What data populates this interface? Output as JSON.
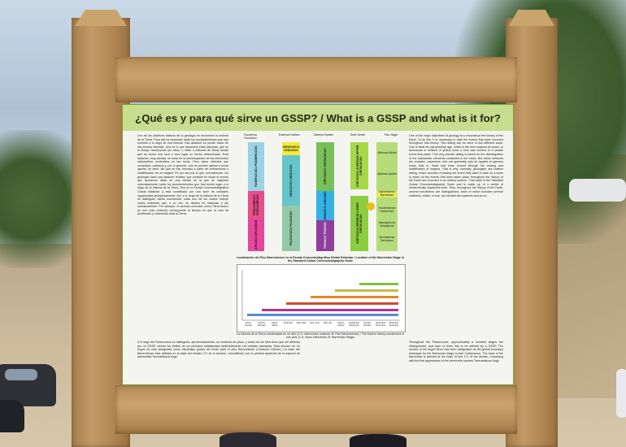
{
  "sign": {
    "title": "¿Qué es y para qué sirve un GSSP? / What is a GSSP and what is it for?",
    "left_paragraph": "Uno de los objetivos básicos de la geología es reconstruir la historia de la Tierra. Para ello es necesario datar los acontecimientos que han ocurrido a lo largo de esa historia. Esa datación se puede hacer de dos formas distintas. Una es lo que llamamos edad absoluta, que es el tiempo transcurrido (en años, o miles o millones de años) desde que se formó una roca o tuvo lugar un hecho determinado. Esta datación, muy precisa, se basa en la desintegración de los elementos radioactivos contenidos en las rocas. Pero estos métodos son complejos, costosos y, por lo general, solo se pueden aplicar a rocas ígneas, es decir, las que se han formado a partir del enfriamiento y solidificación de un magma. Es por eso por lo que, normalmente, los geólogos usan una datación relativa, que consiste en situar el evento que queremos datar en una escala en la que se registran ordenadamente todos los acontecimientos que han tenido lugar a lo largo de la historia de la Tierra. Esa es la Escala Cronoestratigráfica Global Estándar y está constituida por una serie de unidades organizadas jerárquicamente. Así, a lo largo de la historia de la Tierra se distinguen varios eonotemas, cada uno de los cuales incluye varios eratemas que, a su vez, se dividen en sistemas y así sucesivamente. Por ejemplo, el periodo conocido como Fanerozoico (el eón más reciente) corresponde al tiempo en que la vida ha proliferado y colonizado toda la Tierra.",
    "right_paragraph": "One of the major objectives of geology is to reconstruct the history of the Earth. To do this, it is necessary to date the events that have occurred throughout that history. This dating can be done in two different ways. One is what we call absolute age, which is the time elapsed (in years, or thousands or millions of years) since a rock was formed or a certain event took place. This very precise dating is based on the disintegration of the radioactive elements contained in the rocks. But these methods are complex, expensive, and can generally only be applied to igneous rocks, that is, those that have formed through the cooling and solidification of magma. That is why, normally, geologists use relative dating, which consists of placing the event they want to date on a scale in which all the events that have taken place throughout the history of the Earth are recorded in an orderly manner. That scale is the Standard Global Chronostratigraphic Scale and is made up of a series of hierarchically organized units. Thus, throughout the history of the Earth, several eonothems are distinguished, each of which includes several erathems, which, in turn, are divided into systems and so on.",
    "bottom_left_paragraph": "A lo largo del Fanerozoico se distinguen, aproximadamente, un centenar de pisos, y cada uno de ellos tiene que ser definido por un GSSP, siendo los límites de los periodos establecidos arbitrariamente con edades absolutas. Esta sección de río Argos ha sido designada como estratotipo global del límite para el piso Barremiense (Cretácico Inferior). La base del Barremiense está definida en la base del estrato 171 de la sección, coincidiendo con la primera aparición de la especie de ammonites Taveraidiscus hugii.",
    "bottom_right_paragraph": "Throughout the Phanerozoic, approximately a hundred stages are distinguished, and each of them has to be defined by a GSSP. The section of the Argos River has been designated as the global boundary stratotype for the Barremian stage (Lower Cretaceous). The base of the Barremian is defined at the base of bed 171 of the section, coinciding with the first appearance of the ammonite species Taveraidiscus hugii.",
    "strat_chart": {
      "columns": [
        "Eonotema Eonothem",
        "Eratema Erathem",
        "Sistema System",
        "Serie Series",
        "Piso Stage"
      ],
      "blocks": [
        {
          "label": "FANEROZOICO PHANEROZOIC",
          "color": "#9ad2e6"
        },
        {
          "label": "PRECÁMBRICO PRECAMBRIAN",
          "color": "#e84e8a"
        },
        {
          "label": "ARCAICO ARCHAEAN",
          "color": "#e8459e"
        },
        {
          "label": "CENOZOICO CENOZOIC",
          "color": "#f6ea3a"
        },
        {
          "label": "MESOZOICO MESOZOIC",
          "color": "#66c5cc"
        },
        {
          "label": "PALEOZOICO PALEOZOIC",
          "color": "#93c9a8"
        },
        {
          "label": "CRETÁCICO CRETACEOUS",
          "color": "#79c05a"
        },
        {
          "label": "JURÁSICO JURASSIC",
          "color": "#34b2e4"
        },
        {
          "label": "TRIÁSICO TRIASSIC",
          "color": "#8e3e9c"
        },
        {
          "label": "CRETÁCICO SUPERIOR UPPER CRETACEOUS",
          "color": "#a6d84a"
        },
        {
          "label": "CRETÁCICO INFERIOR LOWER CRETACEOUS",
          "color": "#8cce3f"
        }
      ],
      "stages": [
        "Albiense Albian",
        "Aptiense Aptian",
        "Barremiense Barremian",
        "Hauteriviense Hauterivian",
        "Valanginiense Valanginian",
        "Berriasiense Berriasian"
      ],
      "caption": "Localización del Piso Barremiense en la Escala Cronoestratigráfica Global Estándar / Location of the Barremian Stage in the Standard Global Chronostratigraphic Scale"
    },
    "history_chart": {
      "caption": "La historia de la Tierra condensada en un año (1-5: extinciones masivas; B: Piso Barremiense) / The Earth's history condensed in one year (1-5: mass extinctions; B: Barremian Stage)",
      "months": [
        "Enero January",
        "Febrero February",
        "Marzo March",
        "Abril April",
        "Mayo May",
        "Junio June",
        "Julio July",
        "Agosto August",
        "Septiembre September",
        "Octubre October",
        "Noviembre November",
        "Diciembre December"
      ]
    },
    "colors": {
      "title_bar": "#c7dd8f",
      "panel_bg": "#f4f5f0",
      "wood": "#b58b55"
    }
  }
}
